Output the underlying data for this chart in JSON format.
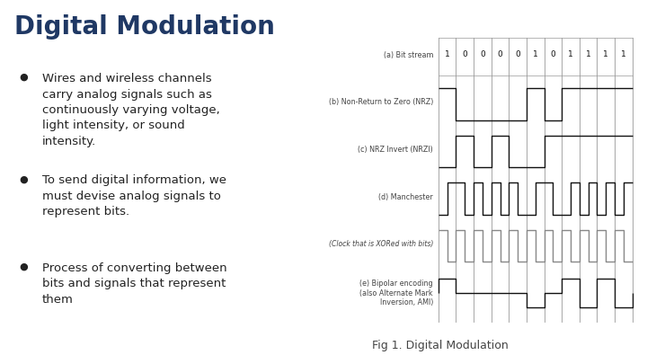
{
  "title": "Digital Modulation",
  "title_color": "#1F3864",
  "title_fontsize": 20,
  "background_color": "#ffffff",
  "bullet_points": [
    "Wires and wireless channels\ncarry analog signals such as\ncontinuously varying voltage,\nlight intensity, or sound\nintensity.",
    "To send digital information, we\nmust devise analog signals to\nrepresent bits.",
    "Process of converting between\nbits and signals that represent\nthem"
  ],
  "bullet_color": "#222222",
  "bullet_fontsize": 9.5,
  "fig_caption": "Fig 1. Digital Modulation",
  "fig_caption_color": "#444444",
  "fig_caption_fontsize": 9,
  "bit_stream": [
    1,
    0,
    0,
    0,
    0,
    1,
    0,
    1,
    1,
    1,
    1
  ],
  "diagram_labels": [
    "(a) Bit stream",
    "(b) Non-Return to Zero (NRZ)",
    "(c) NRZ Invert (NRZI)",
    "(d) Manchester",
    "(Clock that is XORed with bits)",
    "(e) Bipolar encoding\n(also Alternate Mark\nInversion, AMI)"
  ],
  "diagram_label_color": "#444444",
  "diagram_label_fontsize": 5.8,
  "waveform_color": "#111111",
  "waveform_lw": 1.0,
  "grid_color": "#999999",
  "clock_color": "#888888"
}
